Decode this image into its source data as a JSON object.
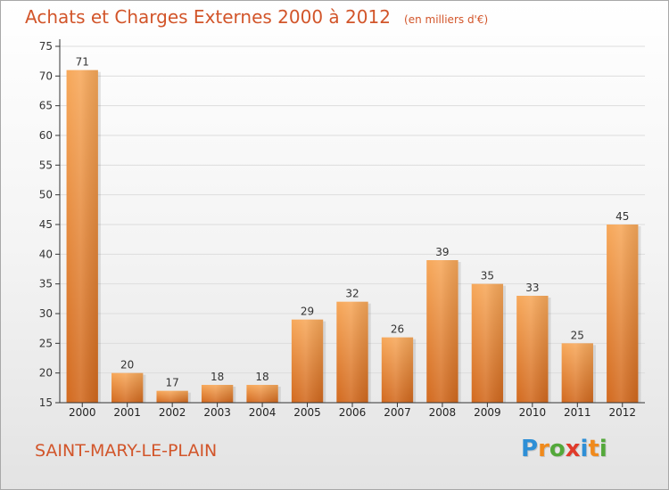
{
  "title": "Achats et Charges Externes 2000 à 2012",
  "unit_note": "(en milliers d'€)",
  "place_name": "SAINT-MARY-LE-PLAIN",
  "brand": {
    "letters": [
      "P",
      "r",
      "o",
      "x",
      "i",
      "t",
      "i"
    ],
    "colors": [
      "#2e8fd6",
      "#f08a1c",
      "#53a83a",
      "#e03a2a",
      "#2e8fd6",
      "#f08a1c",
      "#53a83a"
    ]
  },
  "colors": {
    "title": "#d2552a",
    "bar_light": "#f7a85a",
    "bar_dark": "#d2691e",
    "grid": "#dddddd",
    "axis": "#333333"
  },
  "chart_data": {
    "type": "bar",
    "categories": [
      "2000",
      "2001",
      "2002",
      "2003",
      "2004",
      "2005",
      "2006",
      "2007",
      "2008",
      "2009",
      "2010",
      "2011",
      "2012"
    ],
    "values": [
      71,
      20,
      17,
      18,
      18,
      29,
      32,
      26,
      39,
      35,
      33,
      25,
      45
    ],
    "yticks": [
      15,
      20,
      25,
      30,
      35,
      40,
      45,
      50,
      55,
      60,
      65,
      70,
      75
    ],
    "ylim": [
      15,
      75
    ],
    "grid": true,
    "data_labels": true
  }
}
